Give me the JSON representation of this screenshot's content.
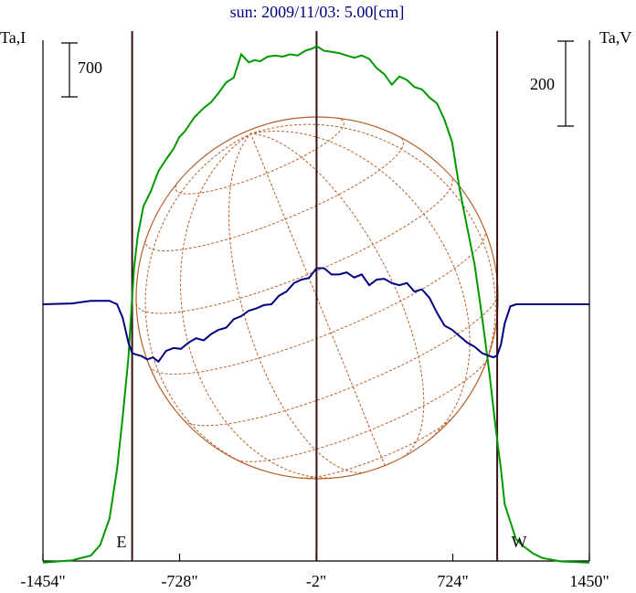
{
  "chart_data": {
    "type": "line",
    "title": "sun: 2009/11/03: 5.00[cm]",
    "left_axis_label": "Ta,I",
    "right_axis_label": "Ta,V",
    "x_ticks": [
      {
        "value": -1454,
        "label": "-1454\""
      },
      {
        "value": -728,
        "label": "-728\""
      },
      {
        "value": -2,
        "label": "-2\""
      },
      {
        "value": 724,
        "label": "724\""
      },
      {
        "value": 1450,
        "label": "1450\""
      }
    ],
    "xlim": [
      -1454,
      1450
    ],
    "limb_labels": {
      "east": "E",
      "west": "W"
    },
    "limb_positions": [
      -980,
      0,
      960
    ],
    "scale_bars": {
      "intensity": "700",
      "polarization": "200"
    },
    "colors": {
      "intensity": "#009900",
      "polarization": "#000080",
      "solar_grid": "#b8602a",
      "limb_lines": "#3a1010",
      "frame": "#000000",
      "title": "#000080"
    },
    "series": [
      {
        "key": "intensity",
        "x": [
          -1454,
          -1300,
          -1200,
          -1150,
          -1100,
          -1060,
          -1030,
          -1000,
          -985,
          -970,
          -950,
          -920,
          -880,
          -840,
          -800,
          -760,
          -730,
          -700,
          -650,
          -600,
          -560,
          -520,
          -480,
          -440,
          -400,
          -360,
          -330,
          -300,
          -260,
          -220,
          -180,
          -140,
          -100,
          -60,
          -20,
          0,
          40,
          80,
          120,
          160,
          200,
          240,
          280,
          320,
          360,
          400,
          440,
          480,
          520,
          560,
          600,
          640,
          680,
          720,
          760,
          800,
          840,
          880,
          920,
          945,
          960,
          980,
          1000,
          1030,
          1060,
          1100,
          1150,
          1200,
          1300,
          1450
        ],
        "y": [
          -100,
          -80,
          -40,
          50,
          280,
          700,
          1150,
          1650,
          2040,
          2420,
          2700,
          2950,
          3080,
          3250,
          3350,
          3440,
          3540,
          3590,
          3710,
          3790,
          3840,
          3920,
          4010,
          4050,
          4250,
          4180,
          4200,
          4190,
          4230,
          4240,
          4230,
          4250,
          4240,
          4280,
          4300,
          4320,
          4280,
          4270,
          4260,
          4240,
          4220,
          4240,
          4210,
          4130,
          4080,
          3990,
          4060,
          4030,
          3970,
          3950,
          3880,
          3830,
          3690,
          3500,
          3100,
          2770,
          2450,
          2000,
          1500,
          1150,
          950,
          700,
          400,
          250,
          100,
          40,
          -20,
          -60,
          -90,
          -100
        ]
      },
      {
        "key": "polarization",
        "x": [
          -1454,
          -1300,
          -1200,
          -1100,
          -1060,
          -1030,
          -1000,
          -980,
          -960,
          -930,
          -900,
          -870,
          -840,
          -800,
          -760,
          -720,
          -680,
          -640,
          -600,
          -560,
          -520,
          -480,
          -440,
          -400,
          -360,
          -320,
          -280,
          -240,
          -200,
          -160,
          -120,
          -80,
          -40,
          0,
          40,
          80,
          120,
          160,
          200,
          240,
          280,
          320,
          360,
          400,
          440,
          480,
          520,
          560,
          600,
          640,
          680,
          720,
          760,
          800,
          840,
          880,
          920,
          940,
          960,
          980,
          1000,
          1030,
          1060,
          1100,
          1200,
          1300,
          1450
        ],
        "y": [
          0,
          2,
          8,
          8,
          0,
          -32,
          -90,
          -115,
          -118,
          -122,
          -130,
          -125,
          -135,
          -110,
          -103,
          -105,
          -90,
          -80,
          -85,
          -70,
          -60,
          -55,
          -35,
          -28,
          -15,
          -10,
          -2,
          0,
          20,
          30,
          50,
          58,
          62,
          85,
          85,
          70,
          70,
          75,
          63,
          70,
          45,
          58,
          60,
          50,
          45,
          50,
          30,
          35,
          15,
          -20,
          -50,
          -60,
          -75,
          -90,
          -100,
          -115,
          -122,
          -125,
          -120,
          -95,
          -45,
          -5,
          0,
          0,
          0,
          0,
          0
        ]
      }
    ]
  }
}
